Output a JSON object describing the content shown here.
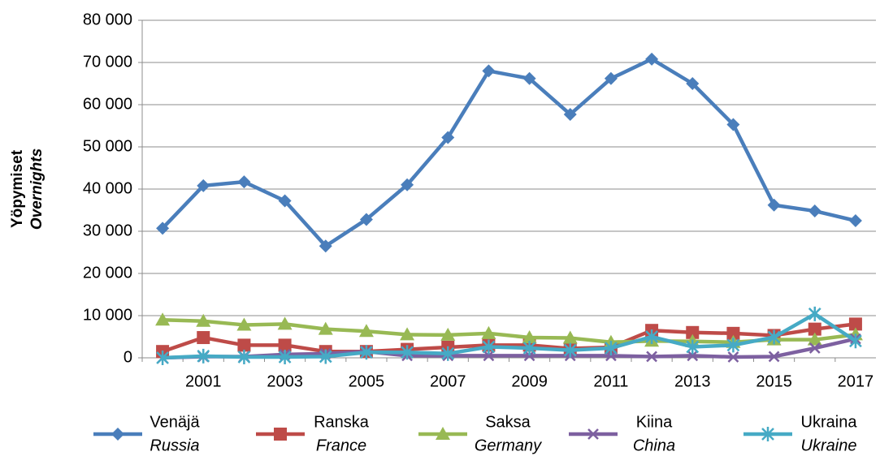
{
  "chart_data": {
    "type": "line",
    "y_label": "Yöpymiset",
    "y_label_en": "Overnights",
    "categories": [
      null,
      "2001",
      null,
      "2003",
      null,
      "2005",
      null,
      "2007",
      null,
      "2009",
      null,
      "2011",
      null,
      "2013",
      null,
      "2015",
      null,
      "2017"
    ],
    "ylim": [
      0,
      80000
    ],
    "yticks": [
      {
        "value": 0,
        "label": "0"
      },
      {
        "value": 10000,
        "label": "10 000"
      },
      {
        "value": 20000,
        "label": "20 000"
      },
      {
        "value": 30000,
        "label": "30 000"
      },
      {
        "value": 40000,
        "label": "40 000"
      },
      {
        "value": 50000,
        "label": "50 000"
      },
      {
        "value": 60000,
        "label": "60 000"
      },
      {
        "value": 70000,
        "label": "70 000"
      },
      {
        "value": 80000,
        "label": "80 000"
      }
    ],
    "grid": true,
    "legend": "bottom",
    "series": [
      {
        "name": "Venäjä",
        "name_en": "Russia",
        "color": "#4a7ebb",
        "marker": "diamond",
        "values": [
          30700,
          40800,
          41700,
          37200,
          26500,
          32800,
          41000,
          52200,
          68000,
          66200,
          57700,
          66200,
          70800,
          65000,
          55300,
          36200,
          34800,
          32500
        ]
      },
      {
        "name": "Ranska",
        "name_en": "France",
        "color": "#be4b48",
        "marker": "square",
        "values": [
          1500,
          4800,
          3000,
          3000,
          1500,
          1500,
          2000,
          2500,
          3000,
          3000,
          2200,
          2500,
          6500,
          6000,
          5800,
          5300,
          6800,
          8000
        ]
      },
      {
        "name": "Saksa",
        "name_en": "Germany",
        "color": "#98b954",
        "marker": "triangle",
        "values": [
          9000,
          8700,
          7800,
          8000,
          6800,
          6300,
          5500,
          5400,
          5800,
          4800,
          4700,
          3700,
          4000,
          3900,
          3700,
          4300,
          4300,
          5500
        ]
      },
      {
        "name": "Kiina",
        "name_en": "China",
        "color": "#7d60a0",
        "marker": "x",
        "values": [
          0,
          300,
          300,
          800,
          1000,
          1500,
          500,
          500,
          500,
          500,
          500,
          500,
          300,
          500,
          200,
          300,
          2300,
          4500
        ]
      },
      {
        "name": "Ukraina",
        "name_en": "Ukraine",
        "color": "#46aac5",
        "marker": "star",
        "values": [
          0,
          400,
          200,
          200,
          300,
          1300,
          1300,
          1000,
          2600,
          2300,
          1800,
          2300,
          5000,
          2600,
          3000,
          4900,
          10400,
          4000
        ]
      }
    ]
  }
}
